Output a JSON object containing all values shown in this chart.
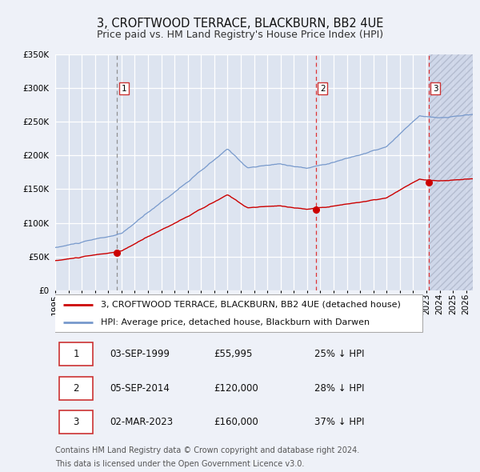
{
  "title": "3, CROFTWOOD TERRACE, BLACKBURN, BB2 4UE",
  "subtitle": "Price paid vs. HM Land Registry's House Price Index (HPI)",
  "ylim": [
    0,
    350000
  ],
  "yticks": [
    0,
    50000,
    100000,
    150000,
    200000,
    250000,
    300000,
    350000
  ],
  "background_color": "#eef1f8",
  "plot_bg_color": "#dde4f0",
  "grid_color": "#ffffff",
  "red_line_color": "#cc0000",
  "blue_line_color": "#7799cc",
  "sale_vlines": [
    1999.67,
    2014.67,
    2023.17
  ],
  "sale_prices": [
    55995,
    120000,
    160000
  ],
  "sale_labels": [
    "1",
    "2",
    "3"
  ],
  "legend_red_label": "3, CROFTWOOD TERRACE, BLACKBURN, BB2 4UE (detached house)",
  "legend_blue_label": "HPI: Average price, detached house, Blackburn with Darwen",
  "table_rows": [
    {
      "num": "1",
      "date": "03-SEP-1999",
      "price": "£55,995",
      "change": "25% ↓ HPI"
    },
    {
      "num": "2",
      "date": "05-SEP-2014",
      "price": "£120,000",
      "change": "28% ↓ HPI"
    },
    {
      "num": "3",
      "date": "02-MAR-2023",
      "price": "£160,000",
      "change": "37% ↓ HPI"
    }
  ],
  "footer_line1": "Contains HM Land Registry data © Crown copyright and database right 2024.",
  "footer_line2": "This data is licensed under the Open Government Licence v3.0.",
  "title_fontsize": 10.5,
  "subtitle_fontsize": 9,
  "tick_fontsize": 7.5,
  "legend_fontsize": 8,
  "table_fontsize": 8.5,
  "footer_fontsize": 7,
  "xmin": 1995.0,
  "xmax": 2026.5,
  "hatch_start": 2023.17
}
